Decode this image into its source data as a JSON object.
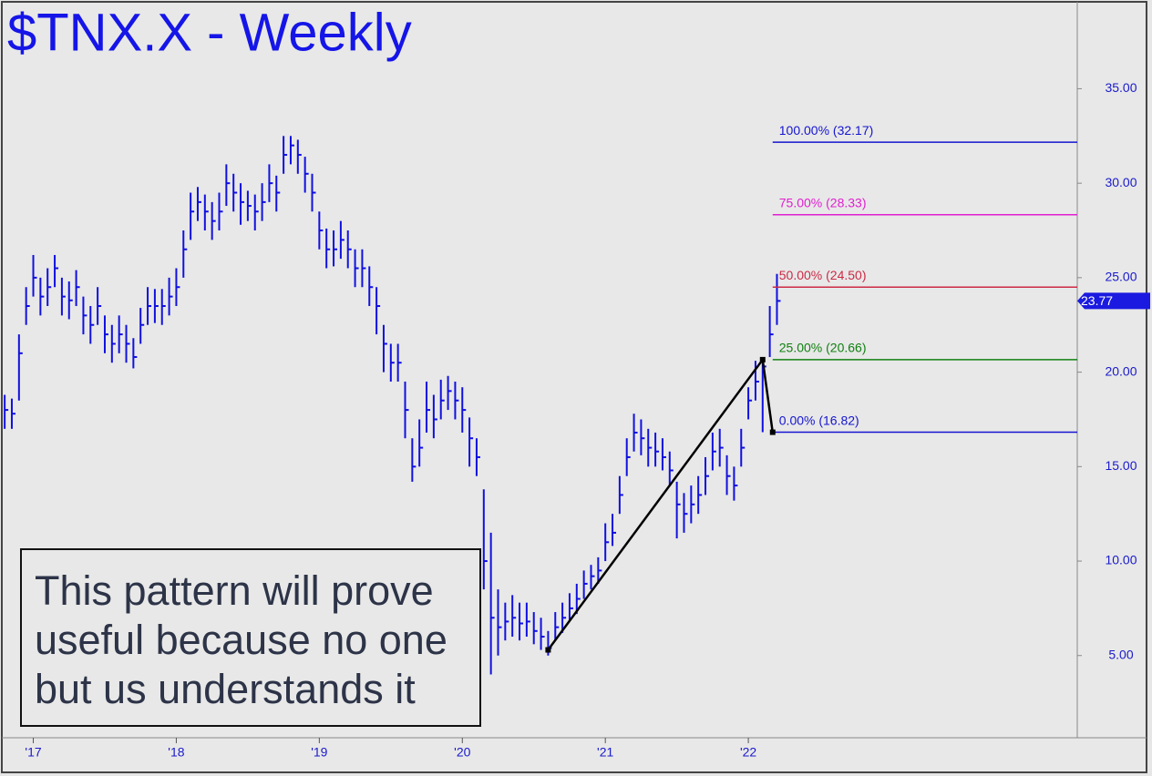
{
  "chart_data": {
    "type": "ohlc",
    "title": "$TNX.X - Weekly",
    "annotation": "This pattern will prove useful because no one but us understands it",
    "color": "#1010e0",
    "xlim": [
      2016.78,
      2024.3
    ],
    "ylim": [
      0.65,
      39.6
    ],
    "xticks": [
      {
        "value": 2017,
        "label": "'17"
      },
      {
        "value": 2018,
        "label": "'18"
      },
      {
        "value": 2019,
        "label": "'19"
      },
      {
        "value": 2020,
        "label": "'20"
      },
      {
        "value": 2021,
        "label": "'21"
      },
      {
        "value": 2022,
        "label": "'22"
      }
    ],
    "yticks": [
      {
        "value": 5,
        "label": "5.00"
      },
      {
        "value": 10,
        "label": "10.00"
      },
      {
        "value": 15,
        "label": "15.00"
      },
      {
        "value": 20,
        "label": "20.00"
      },
      {
        "value": 25,
        "label": "25.00"
      },
      {
        "value": 30,
        "label": "30.00"
      },
      {
        "value": 35,
        "label": "35.00"
      }
    ],
    "x": [
      2016.8,
      2016.85,
      2016.9,
      2016.95,
      2017,
      2017.05,
      2017.1,
      2017.15,
      2017.2,
      2017.25,
      2017.3,
      2017.35,
      2017.4,
      2017.45,
      2017.5,
      2017.55,
      2017.6,
      2017.65,
      2017.7,
      2017.75,
      2017.8,
      2017.85,
      2017.9,
      2017.95,
      2018,
      2018.05,
      2018.1,
      2018.15,
      2018.2,
      2018.25,
      2018.3,
      2018.35,
      2018.4,
      2018.45,
      2018.5,
      2018.55,
      2018.6,
      2018.65,
      2018.7,
      2018.75,
      2018.8,
      2018.85,
      2018.9,
      2018.95,
      2019,
      2019.05,
      2019.1,
      2019.15,
      2019.2,
      2019.25,
      2019.3,
      2019.35,
      2019.4,
      2019.45,
      2019.5,
      2019.55,
      2019.6,
      2019.65,
      2019.7,
      2019.75,
      2019.8,
      2019.85,
      2019.9,
      2019.95,
      2020,
      2020.05,
      2020.1,
      2020.15,
      2020.2,
      2020.25,
      2020.3,
      2020.35,
      2020.4,
      2020.45,
      2020.5,
      2020.55,
      2020.6,
      2020.65,
      2020.7,
      2020.75,
      2020.8,
      2020.85,
      2020.9,
      2020.95,
      2021,
      2021.05,
      2021.1,
      2021.15,
      2021.2,
      2021.25,
      2021.3,
      2021.35,
      2021.4,
      2021.45,
      2021.5,
      2021.55,
      2021.6,
      2021.65,
      2021.7,
      2021.75,
      2021.8,
      2021.85,
      2021.9,
      2021.95,
      2022,
      2022.05,
      2022.1,
      2022.15,
      2022.2
    ],
    "high": [
      18.8,
      18.6,
      22,
      24.5,
      26.2,
      25,
      25.5,
      26.2,
      25,
      24.8,
      25.4,
      24,
      23.5,
      24.5,
      23,
      22.5,
      23,
      22.5,
      21.8,
      23.4,
      24.5,
      24.4,
      24.4,
      25,
      25.5,
      27.5,
      29.5,
      29.8,
      29.4,
      29,
      29.5,
      31,
      30.5,
      30,
      29.6,
      29.4,
      30,
      31,
      30.4,
      32.5,
      32.5,
      32.3,
      31.4,
      30.5,
      28.5,
      27.6,
      27.5,
      28,
      27.5,
      26.5,
      26.5,
      25.6,
      24.5,
      22.5,
      21.5,
      21.5,
      19.5,
      16.5,
      17.5,
      19.5,
      18.8,
      19.6,
      19.8,
      19.5,
      19.2,
      17.6,
      16.5,
      13.8,
      11.5,
      8.5,
      7.8,
      8.2,
      7.8,
      7.8,
      7.3,
      7,
      6.3,
      7.3,
      7.8,
      8.3,
      8.8,
      9.5,
      9.8,
      10.2,
      12,
      12.5,
      14.5,
      16.5,
      17.8,
      17.5,
      17,
      16.8,
      16.5,
      15.8,
      14.2,
      13.6,
      14,
      14.5,
      15.5,
      16.8,
      17,
      15.6,
      15,
      17,
      19.2,
      20.6,
      20.66,
      23.5,
      25.2
    ],
    "low": [
      17,
      17,
      18.5,
      22.5,
      24,
      23,
      23.5,
      24.5,
      23,
      22.8,
      23.5,
      22,
      21.5,
      22.5,
      21,
      20.5,
      21,
      20.5,
      20.2,
      21.5,
      22.5,
      22.6,
      22.5,
      23,
      23.5,
      25,
      27,
      28,
      27.5,
      27,
      27.5,
      28.8,
      28.5,
      27.8,
      28,
      27.5,
      28,
      29,
      28.5,
      30.5,
      31,
      30.5,
      29.5,
      28.5,
      26.5,
      25.5,
      25.6,
      26,
      25.5,
      24.5,
      24.5,
      23.5,
      22,
      20,
      19.5,
      19.5,
      16.5,
      14.2,
      15,
      16.8,
      16.5,
      17.5,
      18,
      17.5,
      16.8,
      15,
      14.5,
      8.5,
      4,
      5,
      5.8,
      6,
      5.8,
      6,
      5.6,
      5.3,
      5,
      5.8,
      6.2,
      6.8,
      7.2,
      8,
      8.5,
      8.8,
      10,
      10.8,
      12.5,
      14.5,
      15.8,
      15.6,
      15,
      15,
      14.8,
      14,
      11.2,
      11.5,
      12,
      12.5,
      13.5,
      14.8,
      15,
      13.5,
      13.2,
      15,
      17.5,
      18.5,
      16.82,
      20.8,
      22.5
    ],
    "close": [
      18,
      17.8,
      21,
      23.5,
      25,
      24,
      24.5,
      25.5,
      24,
      23.8,
      24.5,
      23,
      22.5,
      23.5,
      22,
      21.5,
      22,
      21.5,
      20.8,
      22.5,
      23.5,
      23.5,
      23.5,
      24,
      24.5,
      26.5,
      28.5,
      29,
      28.5,
      28,
      28.5,
      30,
      29.5,
      29,
      28.8,
      28.5,
      29,
      30,
      29.5,
      31.5,
      32,
      31.5,
      30.5,
      29.5,
      27.5,
      26.5,
      26.5,
      27,
      26.5,
      25.5,
      25.5,
      24.5,
      23.5,
      21.5,
      20.5,
      20.5,
      18,
      15,
      16,
      18,
      17.5,
      18.5,
      19,
      18.5,
      18,
      16.5,
      15.5,
      10,
      7,
      6.5,
      6.8,
      7,
      6.7,
      6.8,
      6.3,
      6,
      5.4,
      6.5,
      7,
      7.5,
      8,
      8.8,
      9.2,
      9.5,
      11,
      11.5,
      13.5,
      15.5,
      16.8,
      16.5,
      16,
      15.8,
      15.5,
      14.8,
      13,
      12.5,
      13,
      13.5,
      14.5,
      15.8,
      16,
      14.5,
      14,
      16,
      18.5,
      19.5,
      20.3,
      22,
      23.77
    ],
    "swing": {
      "x": [
        2020.6,
        2022.1,
        2022.17
      ],
      "y": [
        5.3,
        20.66,
        16.82
      ]
    },
    "levels": [
      {
        "label": "100.00% (32.17)",
        "value": 32.17,
        "color": "#1515d0"
      },
      {
        "label": "75.00% (28.33)",
        "value": 28.33,
        "color": "#e020d0"
      },
      {
        "label": "50.00% (24.50)",
        "value": 24.5,
        "color": "#cc2a44"
      },
      {
        "label": "25.00% (20.66)",
        "value": 20.66,
        "color": "#108010"
      },
      {
        "label": "0.00% (16.82)",
        "value": 16.82,
        "color": "#1515d0"
      }
    ],
    "levels_start": 2022.17,
    "last_price": 23.77
  }
}
